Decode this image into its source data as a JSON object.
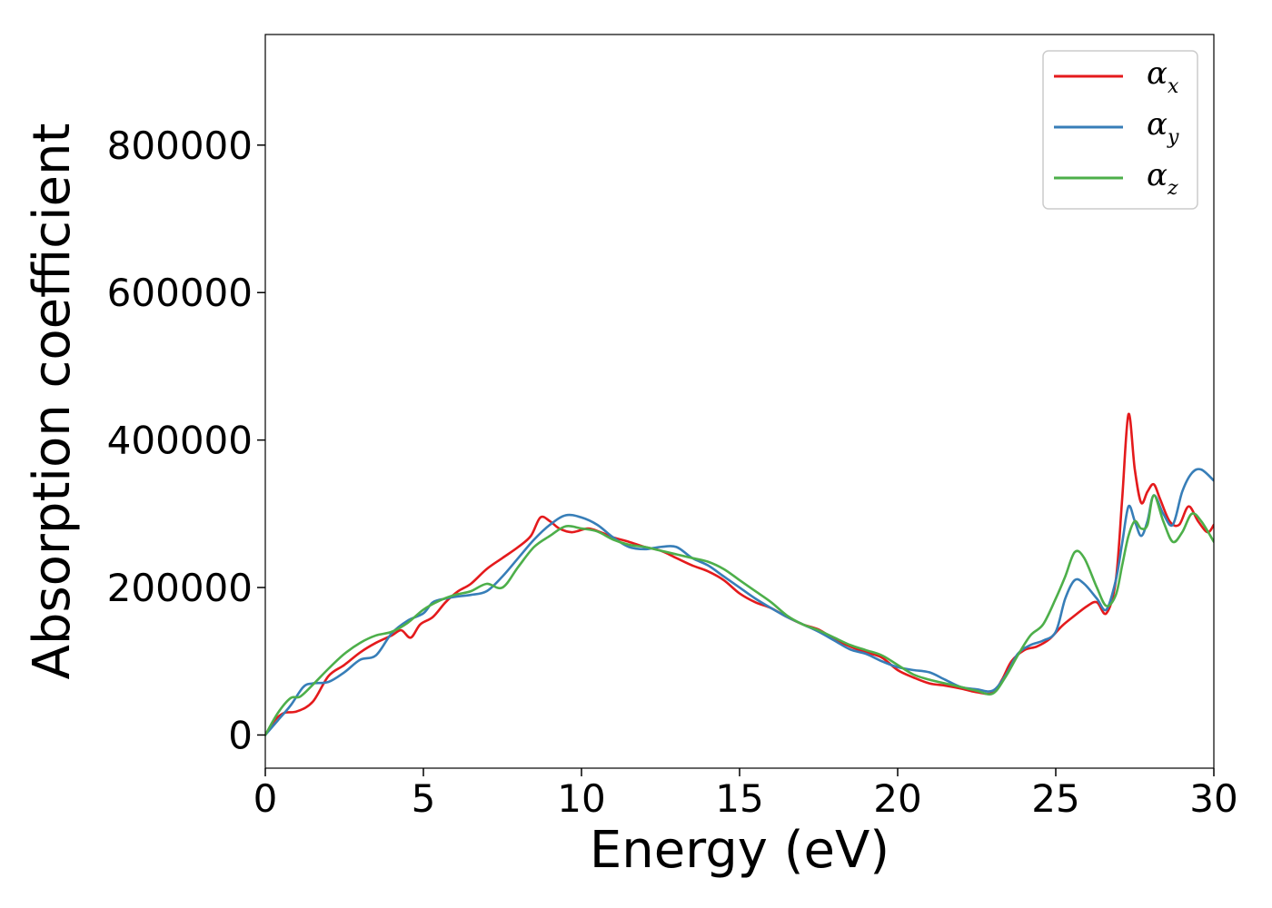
{
  "chart_data": {
    "type": "line",
    "title": "",
    "xlabel": "Energy (eV)",
    "ylabel": "Absorption coefficient",
    "xlim": [
      0,
      30
    ],
    "ylim": [
      -45000,
      950000
    ],
    "xticks": [
      0,
      5,
      10,
      15,
      20,
      25,
      30
    ],
    "xtick_labels": [
      "0",
      "5",
      "10",
      "15",
      "20",
      "25",
      "30"
    ],
    "yticks": [
      0,
      200000,
      400000,
      600000,
      800000
    ],
    "ytick_labels": [
      "0",
      "200000",
      "400000",
      "600000",
      "800000"
    ],
    "grid": false,
    "legend_position": "top-right",
    "series": [
      {
        "name": "α_x",
        "legend_base": "α",
        "legend_sub": "x",
        "color": "#e41a1c",
        "x": [
          0,
          0.3,
          0.6,
          1.0,
          1.5,
          2.0,
          2.5,
          3.0,
          3.5,
          4.0,
          4.3,
          4.6,
          4.9,
          5.3,
          5.7,
          6.1,
          6.5,
          7.0,
          7.5,
          8.0,
          8.4,
          8.7,
          9.0,
          9.3,
          9.7,
          10.2,
          10.6,
          11.0,
          11.5,
          12.0,
          12.5,
          13.0,
          13.5,
          14.0,
          14.5,
          15.0,
          15.5,
          16.0,
          16.5,
          17.0,
          17.5,
          18.0,
          18.5,
          19.0,
          19.5,
          20.0,
          20.5,
          21.0,
          21.5,
          22.0,
          22.5,
          23.0,
          23.3,
          23.6,
          24.0,
          24.4,
          24.8,
          25.2,
          25.6,
          26.0,
          26.3,
          26.6,
          26.9,
          27.1,
          27.3,
          27.5,
          27.7,
          27.9,
          28.1,
          28.3,
          28.6,
          28.9,
          29.2,
          29.5,
          29.8,
          30.0
        ],
        "y": [
          0,
          20000,
          30000,
          32000,
          45000,
          80000,
          95000,
          112000,
          125000,
          135000,
          142000,
          132000,
          150000,
          160000,
          180000,
          195000,
          205000,
          225000,
          240000,
          255000,
          270000,
          295000,
          290000,
          280000,
          275000,
          280000,
          275000,
          268000,
          262000,
          255000,
          250000,
          240000,
          230000,
          222000,
          210000,
          192000,
          180000,
          172000,
          160000,
          150000,
          143000,
          130000,
          120000,
          112000,
          105000,
          88000,
          78000,
          70000,
          67000,
          63000,
          58000,
          57000,
          75000,
          100000,
          115000,
          120000,
          130000,
          148000,
          162000,
          175000,
          180000,
          165000,
          210000,
          320000,
          435000,
          360000,
          315000,
          330000,
          340000,
          320000,
          290000,
          285000,
          310000,
          290000,
          275000,
          285000
        ]
      },
      {
        "name": "α_y",
        "legend_base": "α",
        "legend_sub": "y",
        "color": "#377eb8",
        "x": [
          0,
          0.4,
          0.8,
          1.2,
          1.5,
          2.0,
          2.5,
          3.0,
          3.5,
          4.0,
          4.5,
          5.0,
          5.3,
          5.7,
          6.1,
          6.5,
          7.0,
          7.5,
          8.0,
          8.5,
          9.0,
          9.5,
          10.0,
          10.5,
          11.0,
          11.5,
          12.0,
          12.5,
          13.0,
          13.5,
          14.0,
          14.5,
          15.0,
          15.5,
          16.0,
          16.5,
          17.0,
          17.5,
          18.0,
          18.5,
          19.0,
          19.5,
          20.0,
          20.5,
          21.0,
          21.5,
          22.0,
          22.5,
          23.0,
          23.4,
          23.8,
          24.2,
          24.6,
          25.0,
          25.3,
          25.6,
          25.9,
          26.3,
          26.6,
          26.9,
          27.1,
          27.3,
          27.5,
          27.7,
          27.9,
          28.1,
          28.4,
          28.7,
          29.0,
          29.3,
          29.6,
          30.0
        ],
        "y": [
          0,
          20000,
          40000,
          65000,
          70000,
          72000,
          85000,
          102000,
          108000,
          138000,
          155000,
          165000,
          180000,
          185000,
          188000,
          190000,
          195000,
          215000,
          240000,
          265000,
          285000,
          298000,
          295000,
          285000,
          268000,
          255000,
          252000,
          255000,
          255000,
          240000,
          230000,
          215000,
          200000,
          185000,
          172000,
          160000,
          150000,
          140000,
          128000,
          116000,
          110000,
          100000,
          92000,
          88000,
          85000,
          75000,
          65000,
          62000,
          60000,
          80000,
          110000,
          122000,
          128000,
          140000,
          185000,
          210000,
          205000,
          185000,
          170000,
          210000,
          260000,
          310000,
          290000,
          270000,
          290000,
          325000,
          300000,
          285000,
          330000,
          355000,
          360000,
          345000
        ]
      },
      {
        "name": "α_z",
        "legend_base": "α",
        "legend_sub": "z",
        "color": "#4daf4a",
        "x": [
          0,
          0.4,
          0.8,
          1.1,
          1.5,
          2.0,
          2.5,
          3.0,
          3.5,
          4.0,
          4.5,
          5.0,
          5.5,
          6.0,
          6.5,
          7.0,
          7.5,
          8.0,
          8.5,
          9.0,
          9.5,
          10.0,
          10.5,
          11.0,
          11.5,
          12.0,
          12.5,
          13.0,
          13.5,
          14.0,
          14.5,
          15.0,
          15.5,
          16.0,
          16.5,
          17.0,
          17.5,
          18.0,
          18.5,
          19.0,
          19.5,
          20.0,
          20.5,
          21.0,
          21.5,
          22.0,
          22.5,
          23.0,
          23.4,
          23.8,
          24.2,
          24.6,
          25.0,
          25.3,
          25.6,
          25.9,
          26.3,
          26.6,
          26.9,
          27.1,
          27.3,
          27.5,
          27.7,
          27.9,
          28.1,
          28.4,
          28.7,
          29.0,
          29.3,
          29.6,
          30.0
        ],
        "y": [
          0,
          30000,
          50000,
          52000,
          68000,
          90000,
          110000,
          125000,
          135000,
          140000,
          152000,
          170000,
          182000,
          190000,
          195000,
          205000,
          200000,
          228000,
          255000,
          270000,
          283000,
          280000,
          276000,
          265000,
          258000,
          255000,
          250000,
          245000,
          240000,
          235000,
          225000,
          210000,
          195000,
          180000,
          162000,
          150000,
          142000,
          132000,
          122000,
          115000,
          108000,
          95000,
          82000,
          75000,
          70000,
          65000,
          60000,
          56000,
          78000,
          108000,
          135000,
          150000,
          185000,
          215000,
          248000,
          240000,
          200000,
          175000,
          190000,
          230000,
          270000,
          290000,
          280000,
          285000,
          325000,
          290000,
          262000,
          275000,
          300000,
          290000,
          262000
        ]
      }
    ]
  }
}
